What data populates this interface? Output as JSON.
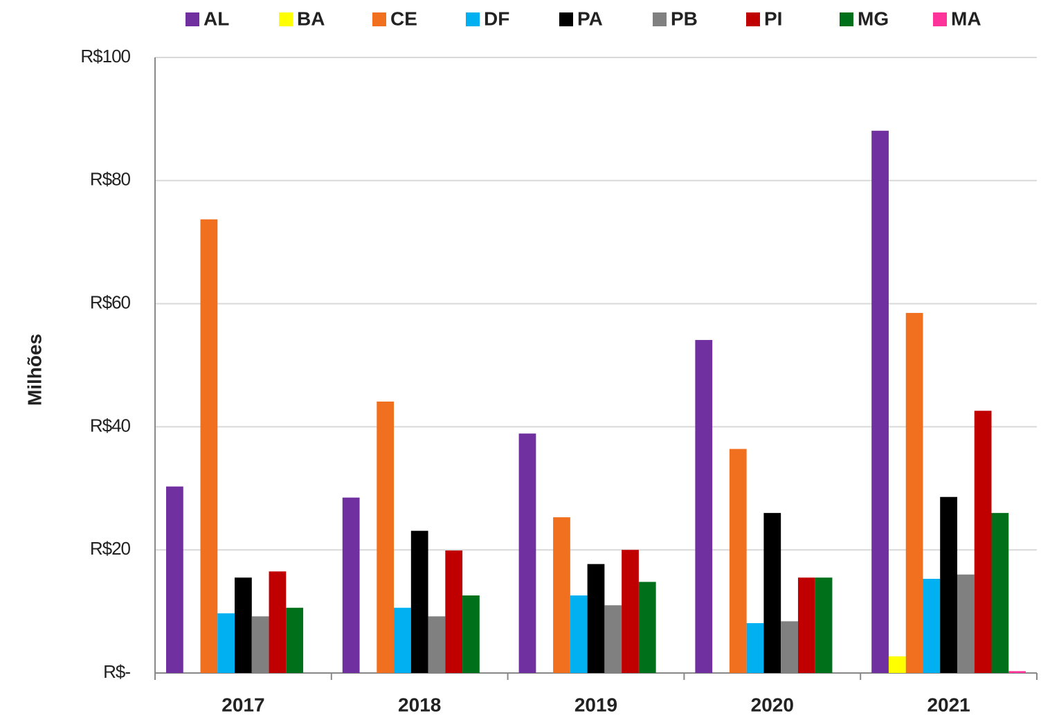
{
  "chart_data": {
    "type": "bar",
    "y_label": "Milhões",
    "categories": [
      "2017",
      "2018",
      "2019",
      "2020",
      "2021"
    ],
    "series": [
      {
        "name": "AL",
        "color": "#7030a0",
        "values": [
          30.3,
          28.5,
          38.9,
          54.1,
          88.1
        ]
      },
      {
        "name": "BA",
        "color": "#ffff00",
        "values": [
          0,
          0,
          0,
          0,
          2.7
        ]
      },
      {
        "name": "CE",
        "color": "#f07020",
        "values": [
          73.7,
          44.1,
          25.3,
          36.4,
          58.5
        ]
      },
      {
        "name": "DF",
        "color": "#00b0f0",
        "values": [
          9.7,
          10.6,
          12.6,
          8.1,
          15.3
        ]
      },
      {
        "name": "PA",
        "color": "#000000",
        "values": [
          15.5,
          23.1,
          17.7,
          26.0,
          28.6
        ]
      },
      {
        "name": "PB",
        "color": "#808080",
        "values": [
          9.2,
          9.2,
          11.0,
          8.4,
          16.0
        ]
      },
      {
        "name": "PI",
        "color": "#c00000",
        "values": [
          16.5,
          19.9,
          20.0,
          15.5,
          42.6
        ]
      },
      {
        "name": "MG",
        "color": "#00701a",
        "values": [
          10.6,
          12.6,
          14.8,
          15.5,
          26.0
        ]
      },
      {
        "name": "MA",
        "color": "#ff3399",
        "values": [
          0,
          0,
          0,
          0,
          0.3
        ]
      }
    ],
    "ylim": [
      0,
      100
    ],
    "yticks": [
      {
        "value": 0,
        "label": "R$-"
      },
      {
        "value": 20,
        "label": "R$20"
      },
      {
        "value": 40,
        "label": "R$40"
      },
      {
        "value": 60,
        "label": "R$60"
      },
      {
        "value": 80,
        "label": "R$80"
      },
      {
        "value": 100,
        "label": "R$100"
      }
    ],
    "grid": true,
    "legend": "top"
  }
}
